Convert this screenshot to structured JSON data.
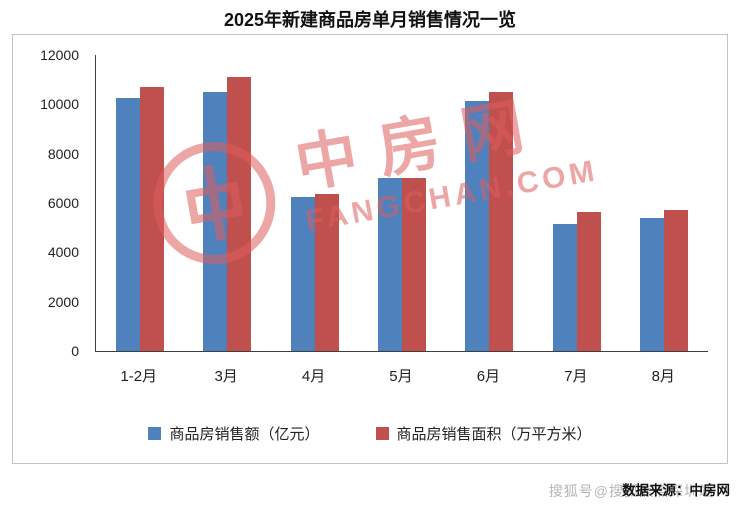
{
  "page": {
    "title": "2025年新建商品房单月销售情况一览",
    "source_text": "数据来源：中房网",
    "source_watermark": "搜狐号@搜狐焦点深圳站"
  },
  "watermark": {
    "brand_cn": "中房网",
    "brand_en": "FANGCHAN.COM"
  },
  "colors": {
    "series1": "#4F81BD",
    "series2": "#C0504D",
    "watermark": "#E05E5E"
  },
  "chart_data": {
    "type": "bar",
    "title": "2025年新建商品房单月销售情况一览",
    "categories": [
      "1-2月",
      "3月",
      "4月",
      "5月",
      "6月",
      "7月",
      "8月"
    ],
    "series": [
      {
        "name": "商品房销售额（亿元）",
        "color_key": "series1",
        "values": [
          10250,
          10500,
          6250,
          7000,
          10150,
          5150,
          5400
        ]
      },
      {
        "name": "商品房销售面积（万平方米）",
        "color_key": "series2",
        "values": [
          10700,
          11100,
          6350,
          7000,
          10500,
          5650,
          5700
        ]
      }
    ],
    "xlabel": "",
    "ylabel": "",
    "ylim": [
      0,
      12000
    ],
    "ytick_step": 2000,
    "grid": false,
    "legend_position": "bottom"
  }
}
